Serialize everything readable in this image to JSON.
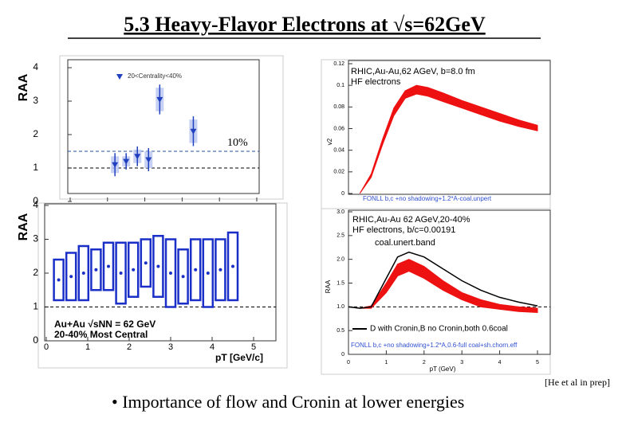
{
  "slide": {
    "title": "5.3 Heavy-Flavor Electrons at √s=62GeV",
    "bullet": "• Importance of flow and Cronin at lower energies",
    "citation": "[He et al  in prep]"
  },
  "chart_data": [
    {
      "type": "scatter",
      "y_label": "RAA",
      "x_label": "pT [GeV/c]",
      "x": [
        1.2,
        1.5,
        1.8,
        2.1,
        2.4,
        3.3
      ],
      "series": [
        {
          "name": "20<Centrality<40%",
          "color": "#2040c0",
          "values": [
            1.1,
            1.2,
            1.35,
            1.25,
            3.05,
            2.1
          ],
          "errors": [
            0.25,
            0.15,
            0.2,
            0.25,
            0.35,
            0.35
          ]
        }
      ],
      "xlim": [
        0,
        5
      ],
      "ylim": [
        0,
        4
      ],
      "xticks": [
        0,
        1,
        2,
        3,
        4,
        5
      ],
      "yticks": [
        0,
        1,
        2,
        3,
        4
      ],
      "reference_lines": [
        1.5,
        1
      ],
      "annotations": [
        "10%"
      ]
    },
    {
      "type": "scatter",
      "y_label": "RAA",
      "x_label": "pT [GeV/c]",
      "x": [
        0.3,
        0.6,
        0.9,
        1.2,
        1.5,
        1.8,
        2.1,
        2.4,
        2.7,
        3.0,
        3.3,
        3.6,
        3.9,
        4.2,
        4.5
      ],
      "series": [
        {
          "color": "#1a2fc8",
          "values": [
            1.8,
            1.9,
            2.0,
            2.1,
            2.2,
            2.0,
            2.1,
            2.3,
            2.2,
            2.0,
            1.9,
            2.1,
            2.0,
            2.1,
            2.2
          ],
          "errors": [
            0.6,
            0.7,
            0.8,
            0.6,
            0.7,
            0.9,
            0.8,
            0.7,
            0.9,
            1.0,
            0.8,
            0.9,
            1.0,
            0.9,
            1.0
          ]
        }
      ],
      "xlim": [
        0,
        5
      ],
      "ylim": [
        0,
        4
      ],
      "xticks": [
        0,
        1,
        2,
        3,
        4,
        5
      ],
      "yticks": [
        0,
        1,
        2,
        3,
        4
      ],
      "reference_lines": [
        1
      ],
      "annotations": [
        "Au+Au √sNN = 62 GeV",
        "20-40% Most Central"
      ]
    },
    {
      "type": "band",
      "y_label": "v2",
      "x": [
        0.3,
        0.6,
        0.9,
        1.2,
        1.5,
        1.8,
        2.1,
        2.5,
        3.0,
        3.5,
        4.0,
        4.5,
        5.0
      ],
      "band": {
        "color": "#ee1111",
        "low": [
          0,
          0.015,
          0.045,
          0.072,
          0.088,
          0.092,
          0.09,
          0.085,
          0.079,
          0.073,
          0.067,
          0.062,
          0.058
        ],
        "high": [
          0,
          0.018,
          0.05,
          0.079,
          0.095,
          0.1,
          0.098,
          0.093,
          0.086,
          0.08,
          0.074,
          0.068,
          0.063
        ]
      },
      "xlim": [
        0,
        5
      ],
      "ylim": [
        0,
        0.12
      ],
      "yticks": [
        0,
        0.02,
        0.04,
        0.06,
        0.08,
        0.1,
        0.12
      ],
      "annotations": [
        "RHIC,Au-Au,62 AGeV, b=8.0 fm",
        "HF electrons",
        "FONLL b,c +no shadowing+1.2*A-coal.unpert"
      ]
    },
    {
      "type": "band",
      "y_label": "RAA",
      "x_label": "pT (GeV)",
      "x": [
        0,
        0.3,
        0.6,
        1.0,
        1.3,
        1.6,
        2.0,
        2.5,
        3.0,
        3.5,
        4.0,
        4.5,
        5.0
      ],
      "band": {
        "color": "#ee1111",
        "low": [
          1.0,
          0.97,
          0.97,
          1.3,
          1.65,
          1.75,
          1.6,
          1.35,
          1.15,
          1.0,
          0.95,
          0.9,
          0.88
        ],
        "high": [
          1.0,
          0.97,
          1.02,
          1.5,
          1.9,
          2.0,
          1.85,
          1.55,
          1.3,
          1.15,
          1.05,
          1.0,
          0.97
        ]
      },
      "series": [
        {
          "name": "D with Cronin,B no Cronin,both 0.6coal",
          "color": "#000000",
          "values": [
            1.0,
            0.97,
            1.0,
            1.6,
            2.05,
            2.15,
            2.05,
            1.8,
            1.55,
            1.35,
            1.2,
            1.1,
            1.02
          ]
        }
      ],
      "xlim": [
        0,
        5
      ],
      "ylim": [
        0,
        3
      ],
      "xticks": [
        0,
        1,
        2,
        3,
        4,
        5
      ],
      "yticks": [
        0,
        0.5,
        {
          "value": 1,
          "label": "1.0"
        },
        1.5,
        {
          "value": 2,
          "label": "2.0"
        },
        2.5,
        {
          "value": 3,
          "label": "3.0"
        }
      ],
      "reference_lines": [
        1
      ],
      "annotations": [
        "RHIC,Au-Au 62 AGeV,20-40%",
        "HF electrons, b/c=0.00191",
        "coal.unert.band",
        "FONLL b,c +no shadowing+1.2*A,0.6-full coal+sh.chorn.eff"
      ]
    }
  ]
}
